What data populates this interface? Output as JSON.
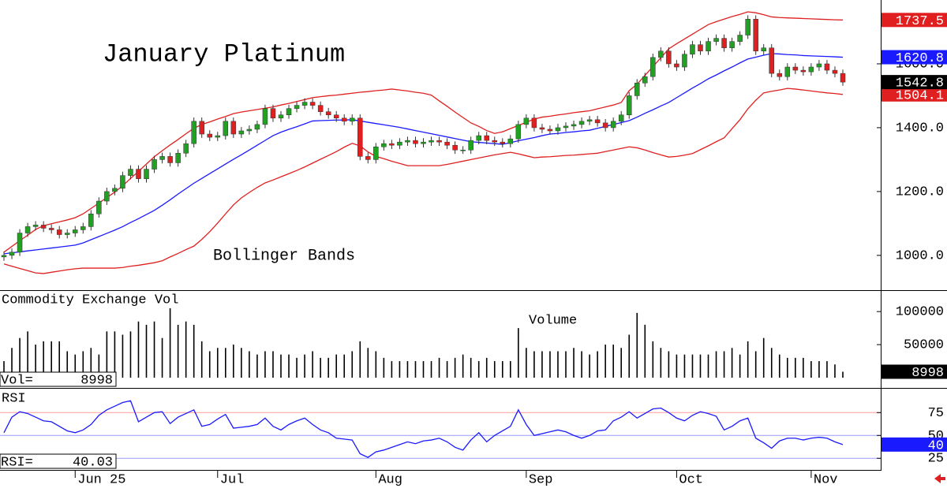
{
  "chart_data": [
    {
      "type": "candlestick",
      "title": "January Platinum",
      "annotation": "Bollinger Bands",
      "categories": [
        null,
        null,
        null,
        null,
        null,
        null,
        null,
        null,
        null,
        "Jun 25",
        null,
        null,
        null,
        null,
        null,
        null,
        null,
        null,
        null,
        null,
        null,
        null,
        null,
        null,
        null,
        null,
        null,
        "Jul",
        null,
        null,
        null,
        null,
        null,
        null,
        null,
        null,
        null,
        null,
        null,
        null,
        null,
        null,
        null,
        null,
        null,
        null,
        null,
        "Aug",
        null,
        null,
        null,
        null,
        null,
        null,
        null,
        null,
        null,
        null,
        null,
        null,
        null,
        null,
        null,
        null,
        null,
        null,
        "Sep",
        null,
        null,
        null,
        null,
        null,
        null,
        null,
        null,
        null,
        null,
        null,
        null,
        null,
        null,
        null,
        null,
        null,
        null,
        "Oct",
        null,
        null,
        null,
        null,
        null,
        null,
        null,
        null,
        null,
        null,
        null,
        null,
        null,
        null,
        null,
        null,
        "Nov",
        null,
        null,
        null,
        null
      ],
      "open": [
        995,
        1000,
        1010,
        1070,
        1090,
        1095,
        1085,
        1080,
        1065,
        1070,
        1080,
        1090,
        1130,
        1170,
        1200,
        1210,
        1250,
        1270,
        1240,
        1270,
        1300,
        1310,
        1290,
        1320,
        1350,
        1420,
        1380,
        1370,
        1375,
        1420,
        1380,
        1390,
        1395,
        1410,
        1460,
        1430,
        1440,
        1460,
        1470,
        1480,
        1470,
        1450,
        1440,
        1430,
        1420,
        1430,
        1310,
        1300,
        1340,
        1350,
        1345,
        1355,
        1360,
        1350,
        1355,
        1360,
        1355,
        1345,
        1330,
        1330,
        1360,
        1375,
        1360,
        1355,
        1350,
        1365,
        1410,
        1430,
        1400,
        1395,
        1390,
        1400,
        1405,
        1410,
        1420,
        1425,
        1415,
        1400,
        1420,
        1440,
        1500,
        1540,
        1560,
        1620,
        1640,
        1600,
        1590,
        1630,
        1660,
        1640,
        1670,
        1680,
        1650,
        1670,
        1690,
        1740,
        1640,
        1650,
        1570,
        1560,
        1590,
        1580,
        1575,
        1590,
        1600,
        1580,
        1570
      ],
      "high": [
        1012,
        1022,
        1082,
        1102,
        1107,
        1107,
        1097,
        1092,
        1082,
        1092,
        1102,
        1142,
        1182,
        1212,
        1222,
        1262,
        1282,
        1282,
        1282,
        1312,
        1322,
        1322,
        1332,
        1362,
        1432,
        1432,
        1392,
        1387,
        1432,
        1432,
        1402,
        1407,
        1422,
        1472,
        1472,
        1452,
        1472,
        1482,
        1492,
        1492,
        1482,
        1462,
        1452,
        1442,
        1442,
        1442,
        1322,
        1352,
        1362,
        1362,
        1367,
        1372,
        1372,
        1367,
        1372,
        1372,
        1367,
        1357,
        1342,
        1372,
        1387,
        1387,
        1372,
        1367,
        1377,
        1422,
        1442,
        1442,
        1412,
        1407,
        1412,
        1417,
        1422,
        1432,
        1437,
        1437,
        1427,
        1432,
        1452,
        1512,
        1552,
        1572,
        1632,
        1652,
        1652,
        1612,
        1642,
        1672,
        1672,
        1682,
        1692,
        1692,
        1682,
        1702,
        1752,
        1752,
        1662,
        1662,
        1582,
        1602,
        1602,
        1592,
        1602,
        1612,
        1612,
        1592,
        1582
      ],
      "low": [
        983,
        988,
        998,
        1058,
        1078,
        1073,
        1068,
        1053,
        1053,
        1058,
        1068,
        1078,
        1118,
        1158,
        1188,
        1198,
        1238,
        1228,
        1228,
        1258,
        1288,
        1278,
        1278,
        1308,
        1338,
        1368,
        1358,
        1358,
        1363,
        1368,
        1368,
        1378,
        1383,
        1398,
        1418,
        1418,
        1428,
        1448,
        1458,
        1458,
        1438,
        1428,
        1418,
        1408,
        1408,
        1298,
        1288,
        1288,
        1328,
        1333,
        1333,
        1343,
        1338,
        1338,
        1343,
        1343,
        1333,
        1318,
        1318,
        1318,
        1348,
        1348,
        1343,
        1338,
        1338,
        1353,
        1398,
        1388,
        1383,
        1378,
        1378,
        1388,
        1393,
        1398,
        1408,
        1403,
        1388,
        1388,
        1408,
        1428,
        1488,
        1528,
        1548,
        1608,
        1588,
        1578,
        1578,
        1618,
        1628,
        1628,
        1658,
        1638,
        1638,
        1658,
        1678,
        1628,
        1628,
        1558,
        1548,
        1548,
        1568,
        1563,
        1563,
        1578,
        1568,
        1558,
        1531
      ],
      "close": [
        1000,
        1010,
        1070,
        1090,
        1095,
        1085,
        1080,
        1065,
        1070,
        1080,
        1090,
        1130,
        1170,
        1200,
        1210,
        1250,
        1270,
        1240,
        1270,
        1300,
        1310,
        1290,
        1320,
        1350,
        1420,
        1380,
        1370,
        1375,
        1420,
        1380,
        1390,
        1395,
        1410,
        1460,
        1430,
        1440,
        1460,
        1470,
        1480,
        1470,
        1450,
        1440,
        1430,
        1420,
        1430,
        1310,
        1300,
        1340,
        1350,
        1345,
        1355,
        1360,
        1350,
        1355,
        1360,
        1355,
        1345,
        1330,
        1330,
        1360,
        1375,
        1360,
        1355,
        1350,
        1365,
        1410,
        1430,
        1400,
        1395,
        1390,
        1400,
        1405,
        1410,
        1420,
        1425,
        1415,
        1400,
        1420,
        1440,
        1500,
        1540,
        1560,
        1620,
        1640,
        1600,
        1590,
        1630,
        1660,
        1640,
        1670,
        1680,
        1650,
        1670,
        1690,
        1740,
        1640,
        1650,
        1570,
        1560,
        1590,
        1580,
        1575,
        1590,
        1600,
        1580,
        1570,
        1542.8
      ],
      "up_color": "#1fa21f",
      "down_color": "#e02020",
      "bands": {
        "upper": [
          1010,
          1028,
          1046,
          1063,
          1081,
          1093,
          1099,
          1105,
          1111,
          1118,
          1130,
          1147,
          1164,
          1181,
          1198,
          1218,
          1241,
          1263,
          1286,
          1309,
          1328,
          1346,
          1363,
          1381,
          1398,
          1410,
          1418,
          1427,
          1435,
          1444,
          1449,
          1453,
          1457,
          1461,
          1465,
          1471,
          1476,
          1482,
          1488,
          1494,
          1497,
          1500,
          1502,
          1505,
          1508,
          1511,
          1513,
          1516,
          1518,
          1521,
          1518,
          1515,
          1511,
          1508,
          1502,
          1484,
          1467,
          1449,
          1432,
          1415,
          1404,
          1391,
          1382,
          1387,
          1397,
          1407,
          1417,
          1427,
          1433,
          1436,
          1440,
          1443,
          1447,
          1450,
          1453,
          1459,
          1465,
          1471,
          1479,
          1516,
          1536,
          1564,
          1591,
          1619,
          1647,
          1663,
          1678,
          1693,
          1708,
          1723,
          1732,
          1740,
          1748,
          1755,
          1763,
          1760,
          1754,
          1747,
          1745,
          1744,
          1743,
          1742,
          1741,
          1740,
          1739,
          1738,
          1737.5
        ],
        "middle": [
          1005,
          1008,
          1011,
          1014,
          1017,
          1020,
          1023,
          1026,
          1029,
          1032,
          1039,
          1049,
          1059,
          1069,
          1079,
          1090,
          1103,
          1115,
          1128,
          1141,
          1157,
          1174,
          1192,
          1209,
          1226,
          1241,
          1256,
          1271,
          1286,
          1301,
          1315,
          1330,
          1345,
          1360,
          1375,
          1386,
          1395,
          1403,
          1412,
          1421,
          1422,
          1423,
          1424,
          1424,
          1425,
          1421,
          1417,
          1413,
          1409,
          1405,
          1401,
          1396,
          1391,
          1386,
          1381,
          1376,
          1371,
          1366,
          1361,
          1356,
          1354,
          1352,
          1350,
          1348,
          1353,
          1359,
          1364,
          1369,
          1375,
          1380,
          1382,
          1385,
          1387,
          1390,
          1392,
          1398,
          1404,
          1410,
          1416,
          1422,
          1433,
          1445,
          1456,
          1468,
          1479,
          1494,
          1509,
          1524,
          1538,
          1553,
          1565,
          1578,
          1590,
          1603,
          1615,
          1621,
          1627,
          1632,
          1631,
          1629,
          1628,
          1626,
          1625,
          1624,
          1623,
          1622,
          1620.8
        ],
        "lower": [
          973,
          966,
          959,
          952,
          945,
          943,
          947,
          951,
          955,
          958,
          960,
          960,
          960,
          960,
          960,
          962,
          966,
          969,
          973,
          977,
          983,
          995,
          1006,
          1018,
          1029,
          1050,
          1074,
          1101,
          1130,
          1158,
          1180,
          1197,
          1213,
          1227,
          1236,
          1246,
          1256,
          1266,
          1277,
          1289,
          1301,
          1313,
          1325,
          1339,
          1351,
          1343,
          1324,
          1310,
          1303,
          1295,
          1288,
          1281,
          1281,
          1281,
          1281,
          1281,
          1285,
          1290,
          1295,
          1300,
          1305,
          1310,
          1315,
          1319,
          1323,
          1318,
          1312,
          1306,
          1308,
          1309,
          1311,
          1313,
          1314,
          1316,
          1318,
          1320,
          1325,
          1330,
          1335,
          1340,
          1337,
          1330,
          1322,
          1315,
          1308,
          1310,
          1314,
          1319,
          1331,
          1343,
          1356,
          1368,
          1397,
          1425,
          1459,
          1486,
          1509,
          1514,
          1518,
          1523,
          1521,
          1518,
          1515,
          1512,
          1509,
          1507,
          1504.1
        ]
      },
      "band_colors": {
        "upper": "#e02020",
        "middle": "#1a1aff",
        "lower": "#e02020"
      },
      "ylim": [
        891,
        1800
      ],
      "yticks": [
        {
          "value": 1000,
          "label": "1000.0"
        },
        {
          "value": 1200,
          "label": "1200.0"
        },
        {
          "value": 1400,
          "label": "1400.0"
        },
        {
          "value": 1600,
          "label": "1600.0"
        }
      ]
    },
    {
      "type": "bar",
      "title": "Commodity Exchange Vol",
      "annotation": "Volume",
      "readout_label": "Vol=",
      "color": "#000000",
      "values": [
        25000,
        45000,
        60000,
        70000,
        50000,
        55000,
        55000,
        55000,
        40000,
        35000,
        40000,
        45000,
        35000,
        70000,
        70000,
        65000,
        70000,
        85000,
        80000,
        85000,
        60000,
        105000,
        80000,
        85000,
        80000,
        55000,
        40000,
        45000,
        45000,
        50000,
        45000,
        40000,
        35000,
        40000,
        40000,
        35000,
        35000,
        30000,
        35000,
        40000,
        30000,
        30000,
        35000,
        35000,
        40000,
        55000,
        45000,
        40000,
        30000,
        25000,
        25000,
        25000,
        25000,
        25000,
        25000,
        30000,
        25000,
        30000,
        35000,
        30000,
        25000,
        30000,
        25000,
        25000,
        25000,
        75000,
        45000,
        40000,
        40000,
        40000,
        40000,
        40000,
        45000,
        40000,
        35000,
        40000,
        50000,
        50000,
        45000,
        65000,
        98000,
        80000,
        55000,
        45000,
        40000,
        35000,
        35000,
        35000,
        35000,
        35000,
        40000,
        40000,
        45000,
        35000,
        55000,
        40000,
        60000,
        45000,
        35000,
        30000,
        30000,
        30000,
        25000,
        25000,
        25000,
        20000,
        8998
      ],
      "ylim": [
        0,
        130000
      ],
      "yticks": [
        50000,
        100000
      ]
    },
    {
      "type": "line",
      "title": "RSI",
      "readout_label": "RSI=",
      "color": "#1a1aff",
      "values": [
        53,
        70,
        76,
        74,
        70,
        66,
        65,
        60,
        55,
        53,
        56,
        62,
        72,
        78,
        82,
        86,
        88,
        65,
        70,
        75,
        76,
        63,
        70,
        74,
        78,
        60,
        62,
        68,
        73,
        58,
        59,
        60,
        62,
        69,
        60,
        56,
        62,
        66,
        69,
        62,
        56,
        53,
        47,
        46,
        45,
        30,
        26,
        32,
        34,
        37,
        40,
        43,
        41,
        44,
        45,
        47,
        43,
        37,
        34,
        45,
        53,
        43,
        50,
        55,
        60,
        78,
        62,
        50,
        52,
        54,
        56,
        54,
        50,
        47,
        50,
        55,
        56,
        66,
        70,
        76,
        69,
        74,
        79,
        80,
        75,
        69,
        66,
        72,
        76,
        74,
        71,
        56,
        60,
        66,
        69,
        47,
        42,
        36,
        44,
        47,
        47,
        45,
        47,
        48,
        47,
        43,
        40.03
      ],
      "axis_value_label": "40",
      "ylim": [
        14,
        102
      ],
      "yticks": [
        25,
        50,
        75
      ],
      "grid_colors": [
        "#9a9aff",
        "#9a9aff",
        "#ff9a9a"
      ]
    }
  ]
}
